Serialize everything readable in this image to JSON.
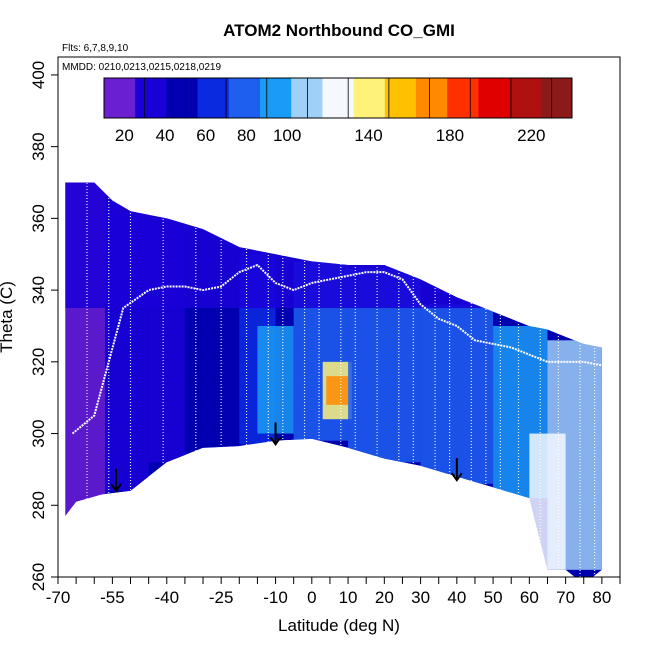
{
  "chart_data": {
    "type": "heatmap",
    "title": "ATOM2 Northbound CO_GMI",
    "flights_note": "Flts: 6,7,8,9,10",
    "dates_note": "MMDD: 0210,0213,0215,0218,0219",
    "xlabel": "Latitude (deg N)",
    "ylabel": "Theta (C)",
    "xlim": [
      -70,
      85
    ],
    "ylim": [
      260,
      405
    ],
    "x_ticks": [
      -70,
      -55,
      -40,
      -25,
      -10,
      0,
      10,
      20,
      30,
      40,
      50,
      60,
      70,
      80
    ],
    "x_minor_ticks": [
      -65,
      -60,
      -50,
      -45,
      -35,
      -30,
      -20,
      -15,
      -5,
      5,
      15,
      25,
      35,
      45,
      55,
      65,
      75,
      85
    ],
    "y_ticks": [
      260,
      280,
      300,
      320,
      340,
      360,
      380,
      400
    ],
    "colorbar": {
      "min": 10,
      "max": 240,
      "ticks": [
        20,
        40,
        60,
        80,
        100,
        140,
        180,
        220
      ],
      "colors": [
        "#6a1fd0",
        "#1a00d8",
        "#0000b0",
        "#0a2ae0",
        "#1f5ff0",
        "#1a9bf5",
        "#9fd0f8",
        "#f5f8ff",
        "#fff27a",
        "#fec000",
        "#ff8a00",
        "#ff3000",
        "#e00000",
        "#b01010",
        "#8c1a1a"
      ]
    },
    "top_boundary": [
      [
        -68,
        370
      ],
      [
        -60,
        370
      ],
      [
        -55,
        365
      ],
      [
        -50,
        362
      ],
      [
        -40,
        360
      ],
      [
        -30,
        357
      ],
      [
        -20,
        352
      ],
      [
        -10,
        350
      ],
      [
        0,
        348
      ],
      [
        10,
        347
      ],
      [
        20,
        347
      ],
      [
        30,
        343
      ],
      [
        40,
        338
      ],
      [
        50,
        334
      ],
      [
        60,
        330
      ],
      [
        65,
        329
      ],
      [
        70,
        327
      ],
      [
        75,
        325
      ],
      [
        80,
        324
      ]
    ],
    "bottom_boundary": [
      [
        -68,
        277
      ],
      [
        -65,
        281
      ],
      [
        -58,
        283
      ],
      [
        -50,
        284
      ],
      [
        -40,
        292
      ],
      [
        -30,
        296
      ],
      [
        -20,
        296.5
      ],
      [
        -10,
        298
      ],
      [
        0,
        298.5
      ],
      [
        10,
        296
      ],
      [
        20,
        293
      ],
      [
        30,
        291
      ],
      [
        40,
        288
      ],
      [
        50,
        285
      ],
      [
        60,
        282
      ],
      [
        65,
        262
      ],
      [
        70,
        262
      ],
      [
        75,
        258
      ],
      [
        80,
        262
      ]
    ],
    "tropopause_line": [
      [
        -66,
        300
      ],
      [
        -60,
        305
      ],
      [
        -52,
        335
      ],
      [
        -45,
        340
      ],
      [
        -40,
        341
      ],
      [
        -35,
        341
      ],
      [
        -30,
        340
      ],
      [
        -25,
        341
      ],
      [
        -20,
        345
      ],
      [
        -15,
        347
      ],
      [
        -10,
        342
      ],
      [
        -5,
        340
      ],
      [
        0,
        342
      ],
      [
        5,
        343
      ],
      [
        10,
        344
      ],
      [
        15,
        345
      ],
      [
        20,
        345
      ],
      [
        25,
        343
      ],
      [
        30,
        336
      ],
      [
        35,
        332
      ],
      [
        40,
        330
      ],
      [
        45,
        326
      ],
      [
        50,
        325
      ],
      [
        55,
        324
      ],
      [
        60,
        322
      ],
      [
        65,
        320
      ],
      [
        70,
        320
      ],
      [
        75,
        320
      ],
      [
        80,
        319
      ]
    ],
    "profile_latitudes": [
      -62,
      -56,
      -50,
      -41,
      -32,
      -25,
      -18,
      -12,
      -8,
      -2,
      2,
      8,
      12,
      18,
      24,
      28,
      34,
      38,
      44,
      48,
      52,
      57,
      63,
      68,
      74,
      78
    ],
    "arrows": [
      {
        "lat": -54,
        "theta": 284
      },
      {
        "lat": -10,
        "theta": 297
      },
      {
        "lat": 40,
        "theta": 287
      }
    ],
    "regions": [
      {
        "lat": [
          -68,
          -57
        ],
        "theta": [
          276,
          372
        ],
        "value": 12
      },
      {
        "lat": [
          -57,
          -45
        ],
        "theta": [
          284,
          364
        ],
        "value": 35
      },
      {
        "lat": [
          -45,
          -35
        ],
        "theta": [
          292,
          360
        ],
        "value": 40
      },
      {
        "lat": [
          -35,
          -20
        ],
        "theta": [
          296,
          355
        ],
        "value": 44
      },
      {
        "lat": [
          -20,
          -10
        ],
        "theta": [
          297,
          350
        ],
        "value": 60
      },
      {
        "lat": [
          -15,
          -5
        ],
        "theta": [
          300,
          330
        ],
        "value": 95
      },
      {
        "lat": [
          -5,
          10
        ],
        "theta": [
          298,
          348
        ],
        "value": 85
      },
      {
        "lat": [
          3,
          11
        ],
        "theta": [
          304,
          320
        ],
        "value": 135
      },
      {
        "lat": [
          4,
          10
        ],
        "theta": [
          308,
          316
        ],
        "value": 165
      },
      {
        "lat": [
          10,
          30
        ],
        "theta": [
          292,
          346
        ],
        "value": 80
      },
      {
        "lat": [
          30,
          50
        ],
        "theta": [
          286,
          336
        ],
        "value": 85
      },
      {
        "lat": [
          50,
          65
        ],
        "theta": [
          282,
          330
        ],
        "value": 100
      },
      {
        "lat": [
          65,
          80
        ],
        "theta": [
          262,
          326
        ],
        "value": 110
      },
      {
        "lat": [
          60,
          70
        ],
        "theta": [
          262,
          300
        ],
        "value": 120
      },
      {
        "lat": [
          -68,
          80
        ],
        "theta": [
          335,
          372
        ],
        "value": 40
      }
    ]
  }
}
